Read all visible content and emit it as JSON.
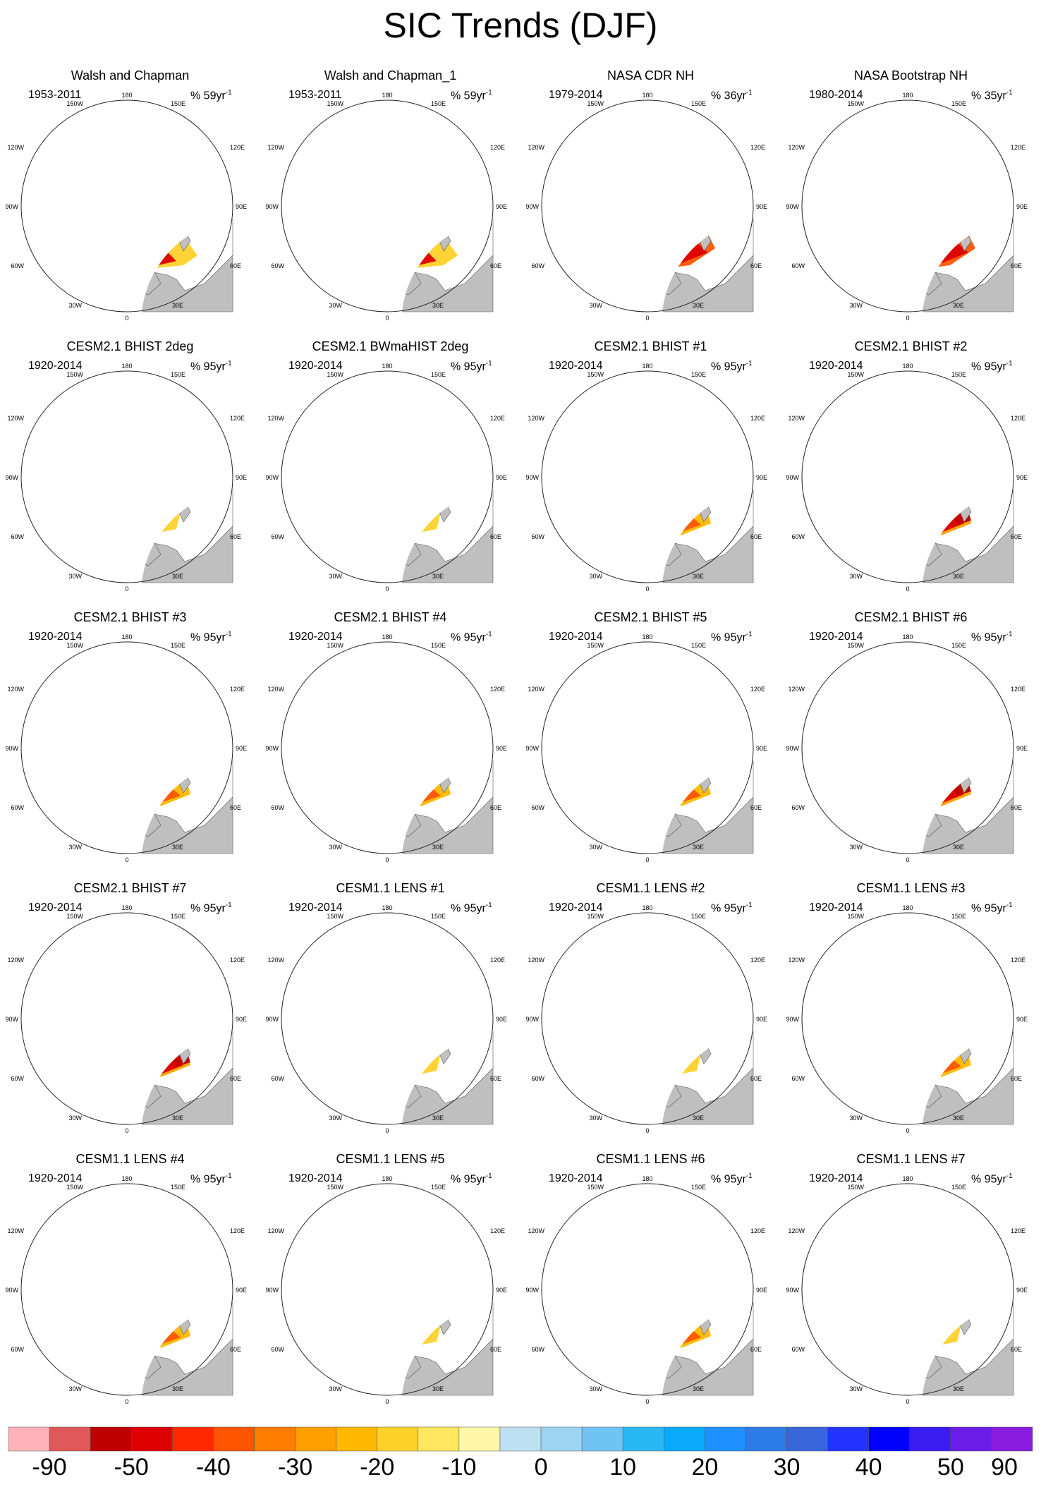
{
  "title": "SIC Trends (DJF)",
  "panels": [
    {
      "title": "Walsh and Chapman",
      "period": "1953-2011",
      "rate": "% 59yr",
      "style": "walsh"
    },
    {
      "title": "Walsh and Chapman_1",
      "period": "1953-2011",
      "rate": "% 59yr",
      "style": "walsh"
    },
    {
      "title": "NASA CDR NH",
      "period": "1979-2014",
      "rate": "% 36yr",
      "style": "nasa"
    },
    {
      "title": "NASA Bootstrap NH",
      "period": "1980-2014",
      "rate": "% 35yr",
      "style": "nasa"
    },
    {
      "title": "CESM2.1 BHIST 2deg",
      "period": "1920-2014",
      "rate": "% 95yr",
      "style": "weak"
    },
    {
      "title": "CESM2.1 BWmaHIST 2deg",
      "period": "1920-2014",
      "rate": "% 95yr",
      "style": "weak"
    },
    {
      "title": "CESM2.1 BHIST #1",
      "period": "1920-2014",
      "rate": "% 95yr",
      "style": "model"
    },
    {
      "title": "CESM2.1 BHIST #2",
      "period": "1920-2014",
      "rate": "% 95yr",
      "style": "strong"
    },
    {
      "title": "CESM2.1 BHIST #3",
      "period": "1920-2014",
      "rate": "% 95yr",
      "style": "model"
    },
    {
      "title": "CESM2.1 BHIST #4",
      "period": "1920-2014",
      "rate": "% 95yr",
      "style": "model"
    },
    {
      "title": "CESM2.1 BHIST #5",
      "period": "1920-2014",
      "rate": "% 95yr",
      "style": "model"
    },
    {
      "title": "CESM2.1 BHIST #6",
      "period": "1920-2014",
      "rate": "% 95yr",
      "style": "strong"
    },
    {
      "title": "CESM2.1 BHIST #7",
      "period": "1920-2014",
      "rate": "% 95yr",
      "style": "strong"
    },
    {
      "title": "CESM1.1 LENS #1",
      "period": "1920-2014",
      "rate": "% 95yr",
      "style": "weak"
    },
    {
      "title": "CESM1.1 LENS #2",
      "period": "1920-2014",
      "rate": "% 95yr",
      "style": "weak"
    },
    {
      "title": "CESM1.1 LENS #3",
      "period": "1920-2014",
      "rate": "% 95yr",
      "style": "model"
    },
    {
      "title": "CESM1.1 LENS #4",
      "period": "1920-2014",
      "rate": "% 95yr",
      "style": "model"
    },
    {
      "title": "CESM1.1 LENS #5",
      "period": "1920-2014",
      "rate": "% 95yr",
      "style": "weak"
    },
    {
      "title": "CESM1.1 LENS #6",
      "period": "1920-2014",
      "rate": "% 95yr",
      "style": "model"
    },
    {
      "title": "CESM1.1 LENS #7",
      "period": "1920-2014",
      "rate": "% 95yr",
      "style": "weak"
    }
  ],
  "rate_exponent": "-1",
  "longitude_labels": [
    "180",
    "150W",
    "150E",
    "120W",
    "120E",
    "90W",
    "90E",
    "60W",
    "60E",
    "30W",
    "30E",
    "0"
  ],
  "colors": {
    "land": "#bfbfbf",
    "ocean": "#ffffff",
    "coast": "#555555"
  },
  "colorbar": {
    "colors": [
      "#ffb3b8",
      "#e05858",
      "#c00000",
      "#dd0000",
      "#ff2800",
      "#ff5500",
      "#ff7d00",
      "#ff9f00",
      "#ffb800",
      "#ffd12a",
      "#ffe760",
      "#fff7a6",
      "#bde0f2",
      "#9dd4f2",
      "#6fc4f4",
      "#2ab8f5",
      "#0aaafa",
      "#1e90ff",
      "#2d7be6",
      "#3a66dc",
      "#2233ff",
      "#0000ff",
      "#3a1cf0",
      "#6a1ce8",
      "#8a1ce0"
    ],
    "ticks": [
      {
        "value": "-90",
        "boundary": 1
      },
      {
        "value": "-50",
        "boundary": 3
      },
      {
        "value": "-40",
        "boundary": 5
      },
      {
        "value": "-30",
        "boundary": 7
      },
      {
        "value": "-20",
        "boundary": 9
      },
      {
        "value": "-10",
        "boundary": 11
      },
      {
        "value": "0",
        "boundary": 13
      },
      {
        "value": "10",
        "boundary": 15
      },
      {
        "value": "20",
        "boundary": 17
      },
      {
        "value": "30",
        "boundary": 19
      },
      {
        "value": "40",
        "boundary": 21
      },
      {
        "value": "50",
        "boundary": 23
      },
      {
        "value": "90",
        "boundary": 25
      }
    ]
  }
}
